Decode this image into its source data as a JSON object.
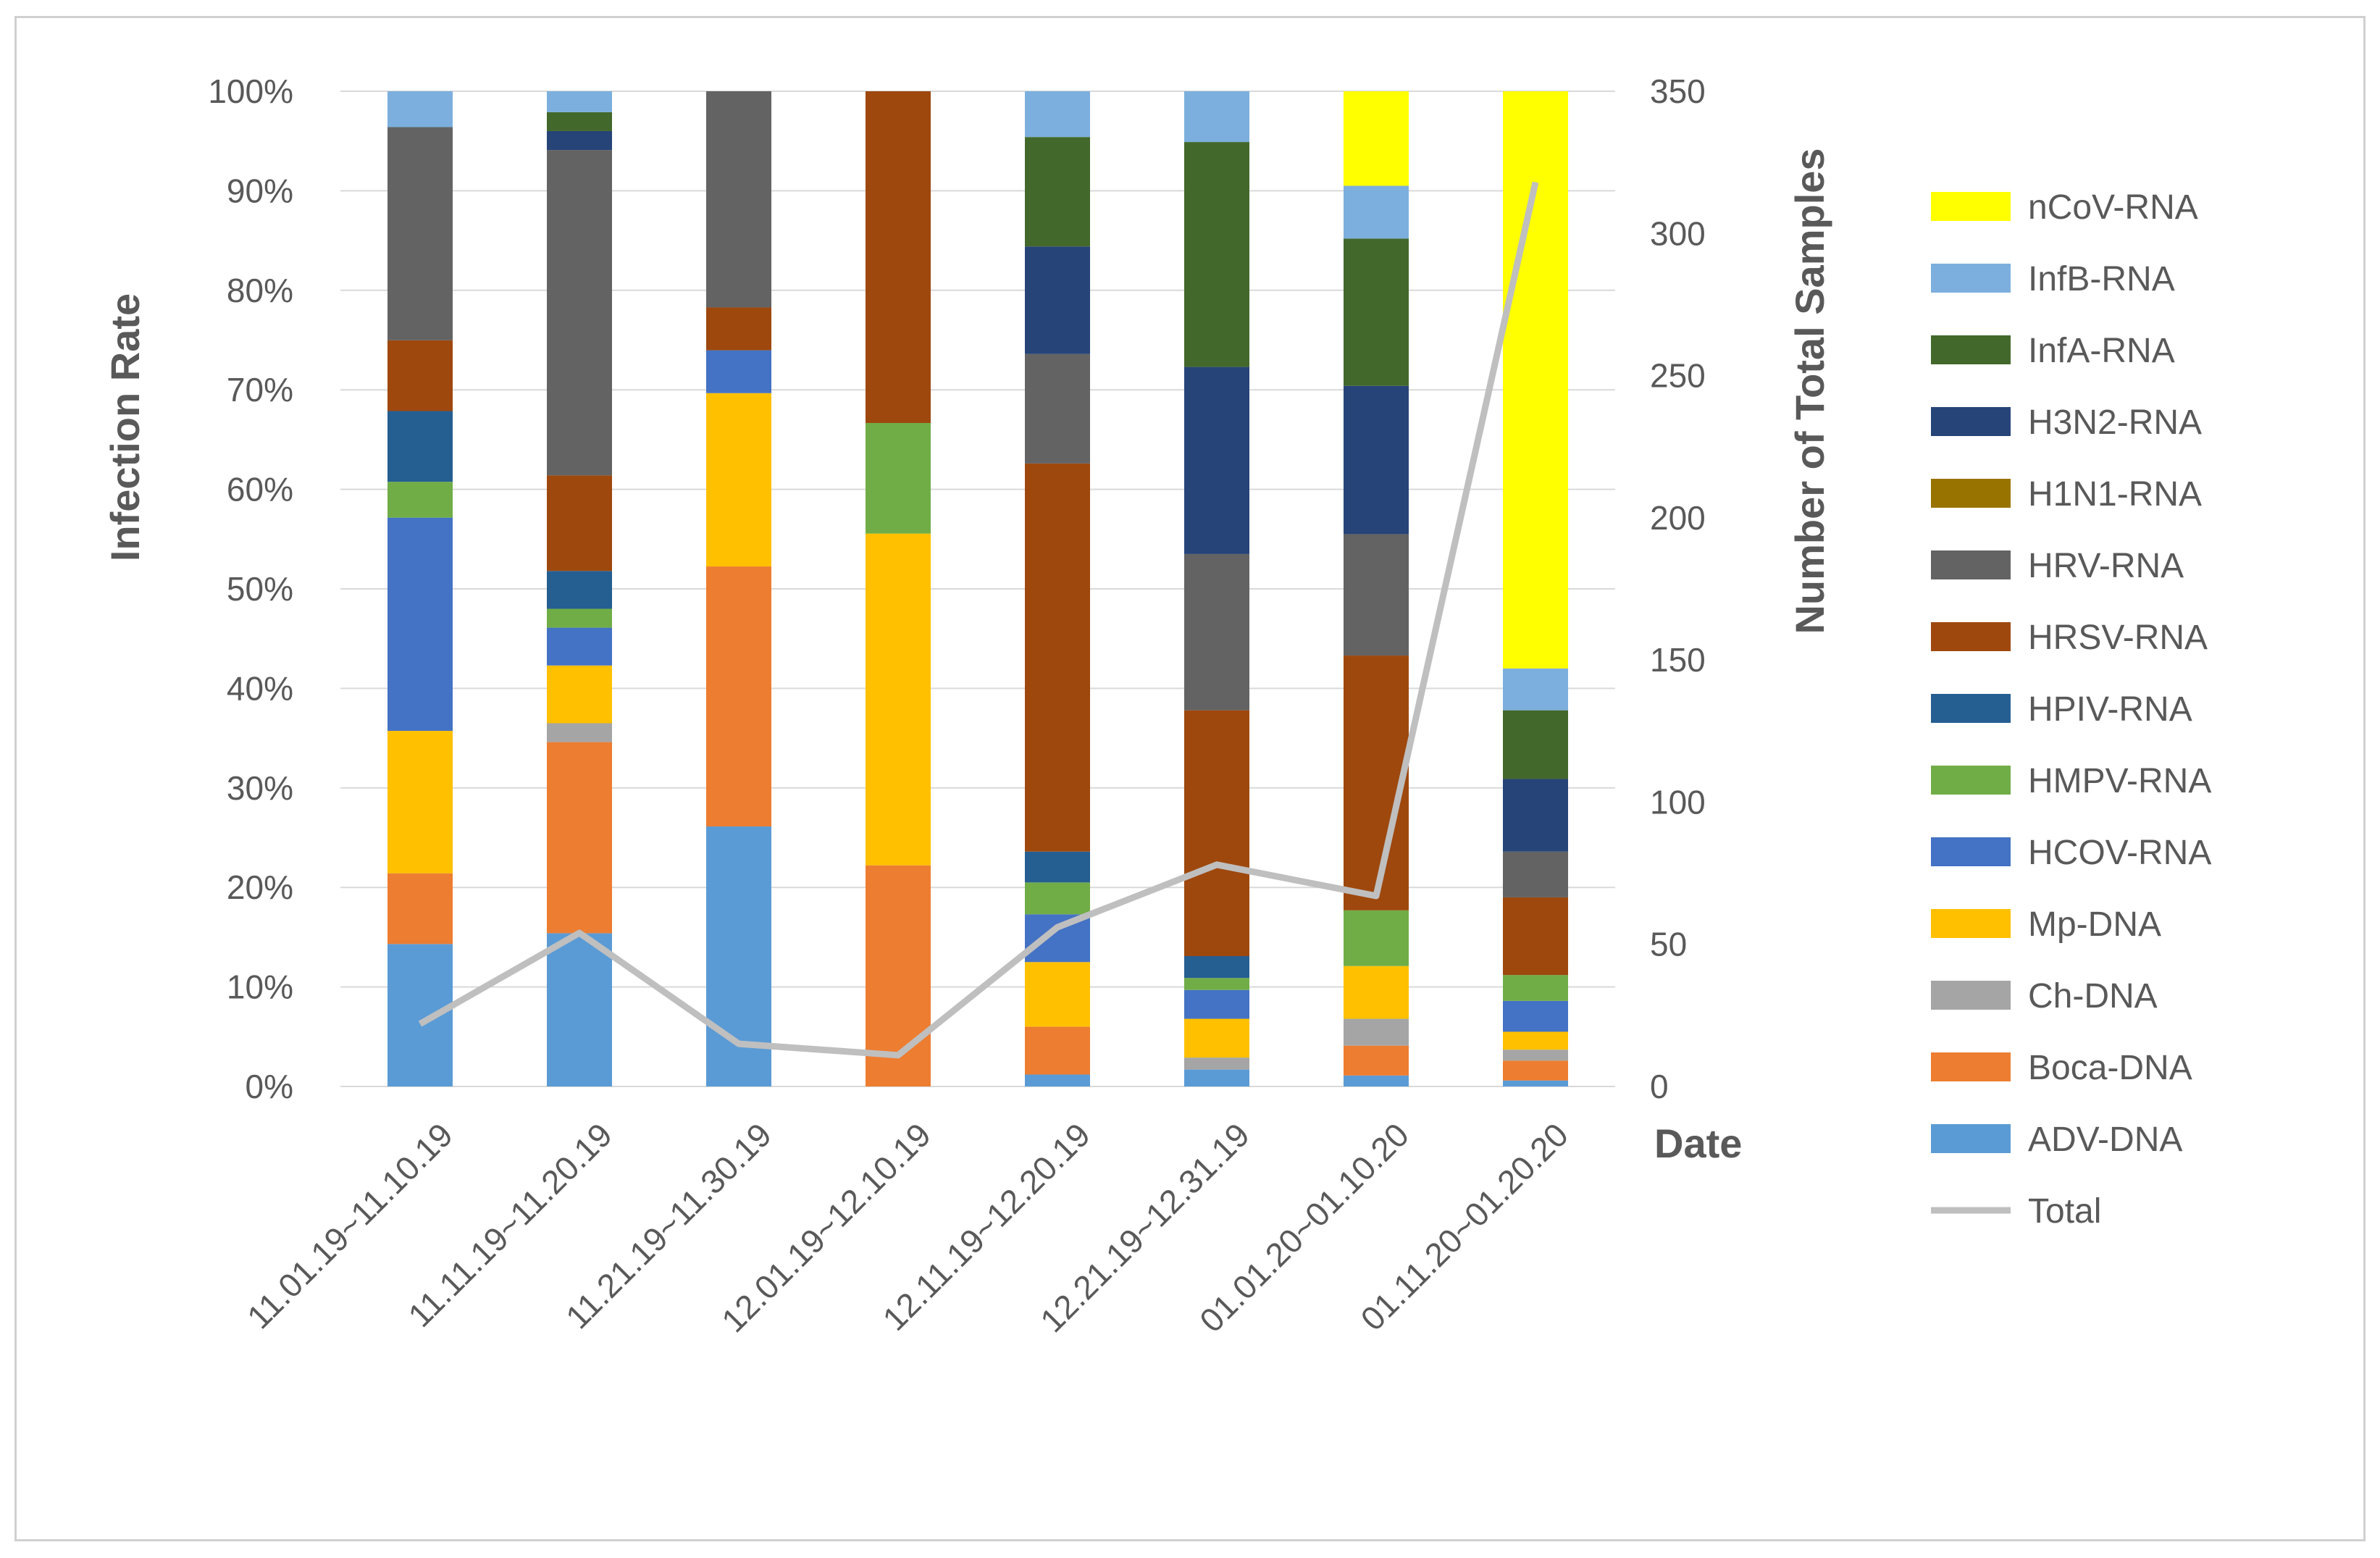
{
  "chart_data": {
    "type": "bar",
    "stacked": true,
    "percent_stacked": true,
    "categories": [
      "11.01.19~11.10.19",
      "11.11.19~11.20.19",
      "11.21.19~11.30.19",
      "12.01.19~12.10.19",
      "12.11.19~12.20.19",
      "12.21.19~12.31.19",
      "01.01.20~01.10.20",
      "01.11.20~01.20.20"
    ],
    "ylabel": "Infection Rate",
    "y2label": "Number of Total Samples",
    "xlabel": "Date",
    "ylim": [
      0,
      100
    ],
    "y2lim": [
      0,
      350
    ],
    "yticks": [
      "0%",
      "10%",
      "20%",
      "30%",
      "40%",
      "50%",
      "60%",
      "70%",
      "80%",
      "90%",
      "100%"
    ],
    "y2ticks": [
      "0",
      "50",
      "100",
      "150",
      "200",
      "250",
      "300",
      "350"
    ],
    "grid": true,
    "legend_position": "right",
    "series": [
      {
        "name": "ADV-DNA",
        "color": "#5B9BD5",
        "values": [
          14.3,
          15.4,
          26.1,
          0,
          1.2,
          1.7,
          1.1,
          0.6
        ]
      },
      {
        "name": "Boca-DNA",
        "color": "#ED7D31",
        "values": [
          7.1,
          19.2,
          26.1,
          22.2,
          4.8,
          0,
          3.0,
          2.0
        ]
      },
      {
        "name": "Ch-DNA",
        "color": "#A5A5A5",
        "values": [
          0,
          1.9,
          0,
          0,
          0,
          1.2,
          2.7,
          1.1
        ]
      },
      {
        "name": "Mp-DNA",
        "color": "#FFC000",
        "values": [
          14.3,
          5.8,
          17.4,
          33.3,
          6.5,
          3.9,
          5.3,
          1.8
        ]
      },
      {
        "name": "HCOV-RNA",
        "color": "#4472C4",
        "values": [
          21.4,
          3.8,
          4.3,
          0,
          4.8,
          2.9,
          0,
          3.1
        ]
      },
      {
        "name": "HMPV-RNA",
        "color": "#70AD47",
        "values": [
          3.6,
          1.9,
          0,
          11.1,
          3.2,
          1.2,
          5.6,
          2.6
        ]
      },
      {
        "name": "HPIV-RNA",
        "color": "#255E91",
        "values": [
          7.1,
          3.8,
          0,
          0,
          3.1,
          2.2,
          0,
          0
        ]
      },
      {
        "name": "HRSV-RNA",
        "color": "#9E480E",
        "values": [
          7.1,
          9.6,
          4.3,
          33.3,
          39.0,
          24.7,
          25.6,
          7.8
        ]
      },
      {
        "name": "HRV-RNA",
        "color": "#636363",
        "values": [
          21.4,
          32.7,
          21.7,
          0,
          11.0,
          15.7,
          12.2,
          4.6
        ]
      },
      {
        "name": "H1N1-RNA",
        "color": "#997300",
        "values": [
          0,
          0,
          0,
          0,
          0,
          0,
          0,
          0
        ]
      },
      {
        "name": "H3N2-RNA",
        "color": "#264478",
        "values": [
          0,
          1.9,
          0,
          0,
          10.8,
          18.8,
          14.9,
          7.3
        ]
      },
      {
        "name": "InfA-RNA",
        "color": "#43682B",
        "values": [
          0,
          1.9,
          0,
          0,
          11.0,
          22.6,
          14.8,
          6.9
        ]
      },
      {
        "name": "InfB-RNA",
        "color": "#7CAFDD",
        "values": [
          3.6,
          2.1,
          0,
          0,
          4.6,
          5.1,
          5.3,
          4.2
        ]
      },
      {
        "name": "nCoV-RNA",
        "color": "#FFFF00",
        "values": [
          0,
          0,
          0,
          0,
          0,
          0,
          9.5,
          58.0
        ]
      }
    ],
    "line_series": {
      "name": "Total",
      "color": "#BFBFBF",
      "axis": "secondary",
      "values": [
        22,
        54,
        15,
        11,
        56,
        78,
        67,
        318
      ]
    },
    "legend_order": [
      "nCoV-RNA",
      "InfB-RNA",
      "InfA-RNA",
      "H3N2-RNA",
      "H1N1-RNA",
      "HRV-RNA",
      "HRSV-RNA",
      "HPIV-RNA",
      "HMPV-RNA",
      "HCOV-RNA",
      "Mp-DNA",
      "Ch-DNA",
      "Boca-DNA",
      "ADV-DNA",
      "Total"
    ]
  }
}
